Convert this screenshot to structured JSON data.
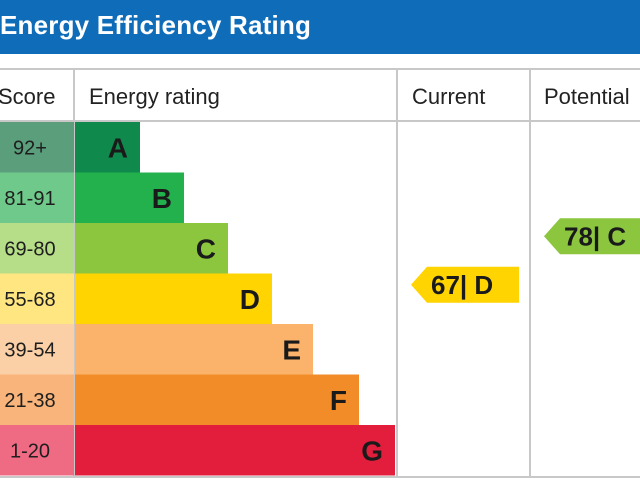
{
  "header": {
    "title": "Energy Efficiency Rating"
  },
  "columns": {
    "score": "Score",
    "rating": "Energy rating",
    "current": "Current",
    "potential": "Potential"
  },
  "chart_data": {
    "type": "bar",
    "title": "Energy Efficiency Rating",
    "categories": [
      "A",
      "B",
      "C",
      "D",
      "E",
      "F",
      "G"
    ],
    "score_ranges": [
      "92+",
      "81-91",
      "69-80",
      "55-68",
      "39-54",
      "21-38",
      "1-20"
    ],
    "band_colors": [
      "#0f8a4c",
      "#23b14d",
      "#8cc63f",
      "#ffd400",
      "#fbb36b",
      "#f28c28",
      "#e31d3c"
    ],
    "score_colors": [
      "#5a9e7c",
      "#6fc98b",
      "#b6dd88",
      "#ffe680",
      "#fbd0a6",
      "#f8b47a",
      "#ee6b83"
    ],
    "current": {
      "value": 67,
      "band": "D",
      "label": "67| D",
      "color": "#ffd400"
    },
    "potential": {
      "value": 78,
      "band": "C",
      "label": "78| C",
      "color": "#8cc63f"
    }
  }
}
